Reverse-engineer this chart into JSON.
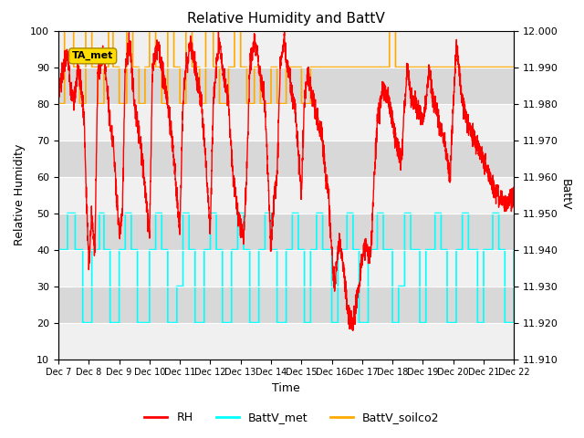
{
  "title": "Relative Humidity and BattV",
  "ylabel_left": "Relative Humidity",
  "ylabel_right": "BattV",
  "xlabel": "Time",
  "ylim_left": [
    10,
    100
  ],
  "ylim_right": [
    11.91,
    12.0
  ],
  "yticks_left": [
    10,
    20,
    30,
    40,
    50,
    60,
    70,
    80,
    90,
    100
  ],
  "yticks_right": [
    11.91,
    11.92,
    11.93,
    11.94,
    11.95,
    11.96,
    11.97,
    11.98,
    11.99,
    12.0
  ],
  "xtick_labels": [
    "Dec 7",
    "Dec 8",
    "Dec 9",
    "Dec 10",
    "Dec 11",
    "Dec 12",
    "Dec 13",
    "Dec 14",
    "Dec 15",
    "Dec 16",
    "Dec 17",
    "Dec 18",
    "Dec 19",
    "Dec 20",
    "Dec 21",
    "Dec 22"
  ],
  "color_RH": "#ff0000",
  "color_BattV_met": "#00ffff",
  "color_BattV_soilco2": "#ffaa00",
  "annotation_text": "TA_met",
  "annotation_color": "#ffdd00",
  "bg_color_light": "#f0f0f0",
  "bg_color_dark": "#d8d8d8",
  "grid_color": "#ffffff"
}
